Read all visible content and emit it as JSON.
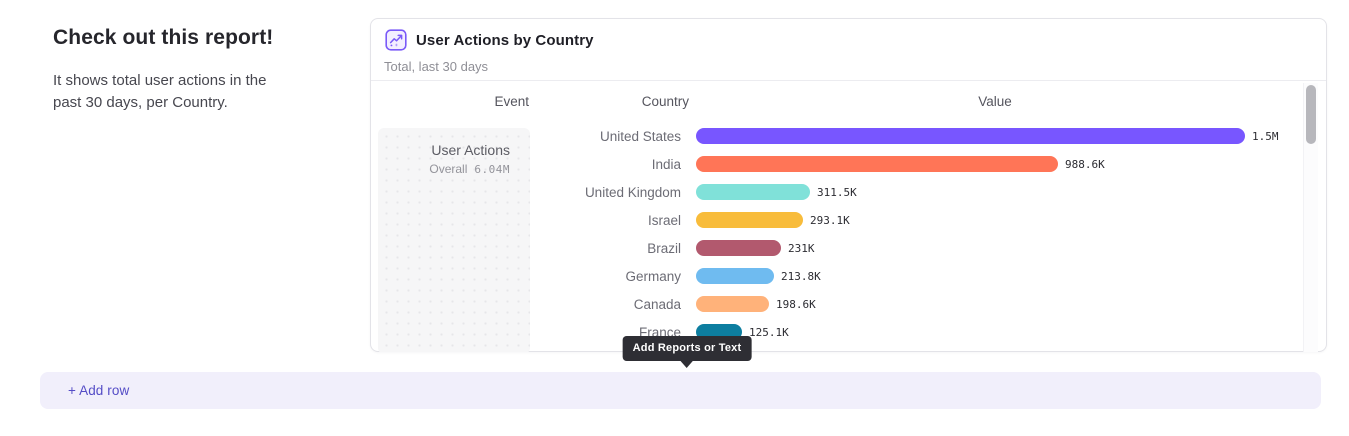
{
  "text_cell": {
    "heading": "Check out this report!",
    "body": "It shows total user actions in the past 30 days, per Country."
  },
  "report": {
    "title": "User Actions by Country",
    "subtitle": "Total, last 30 days",
    "columns": {
      "event": "Event",
      "country": "Country",
      "value": "Value"
    },
    "event": {
      "name": "User Actions",
      "overall_label": "Overall",
      "overall_value": "6.04M"
    }
  },
  "chart_data": {
    "type": "bar",
    "orientation": "horizontal",
    "title": "User Actions by Country",
    "series_name": "User Actions",
    "overall_total": "6.04M",
    "categories": [
      "United States",
      "India",
      "United Kingdom",
      "Israel",
      "Brazil",
      "Germany",
      "Canada",
      "France"
    ],
    "values_k": [
      1500,
      988.6,
      311.5,
      293.1,
      231,
      213.8,
      198.6,
      125.1
    ],
    "value_labels": [
      "1.5M",
      "988.6K",
      "311.5K",
      "293.1K",
      "231K",
      "213.8K",
      "198.6K",
      "125.1K"
    ],
    "bar_colors": [
      "#7856FF",
      "#FF7557",
      "#80E1D9",
      "#F8BC3B",
      "#B2596E",
      "#6FBBF0",
      "#FFB27A",
      "#0D7EA0"
    ],
    "max_value_k": 1500,
    "xlim_k": [
      0,
      1500
    ],
    "grid": false,
    "legend": false
  },
  "tooltip": {
    "label": "Add Reports or Text"
  },
  "add_row": {
    "label": "+ Add row"
  },
  "colors": {
    "accent_purple": "#7856FF",
    "link_purple": "#544CC6",
    "tooltip_bg": "#2E2E34",
    "add_row_bg": "#F1EFFB",
    "card_border": "#E3E3E8"
  }
}
